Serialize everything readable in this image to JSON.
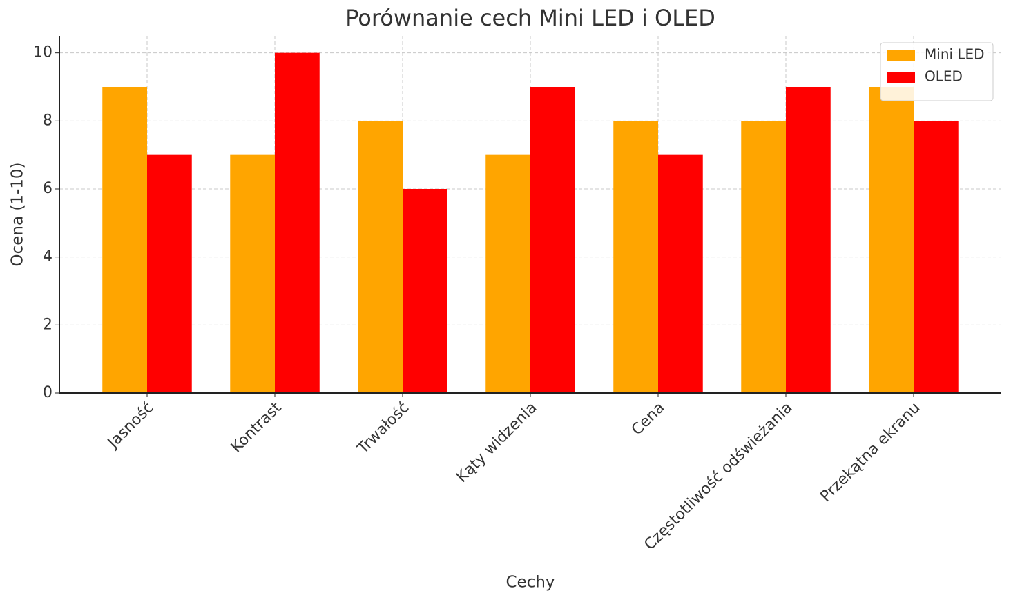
{
  "chart_data": {
    "type": "bar",
    "title": "Porównanie cech Mini LED i OLED",
    "x_label": "Cechy",
    "y_label": "Ocena (1-10)",
    "categories": [
      "Jasność",
      "Kontrast",
      "Trwałość",
      "Kąty widzenia",
      "Cena",
      "Częstotliwość odświeżania",
      "Przekątna ekranu"
    ],
    "series": [
      {
        "name": "Mini LED",
        "color": "#ffa500",
        "values": [
          9,
          7,
          8,
          7,
          8,
          8,
          9
        ]
      },
      {
        "name": "OLED",
        "color": "#ff0000",
        "values": [
          7,
          10,
          6,
          9,
          7,
          9,
          8
        ]
      }
    ],
    "ylim": [
      0,
      10.5
    ],
    "yticks": [
      0,
      2,
      4,
      6,
      8,
      10
    ],
    "grid": true,
    "legend": "upper-right"
  }
}
